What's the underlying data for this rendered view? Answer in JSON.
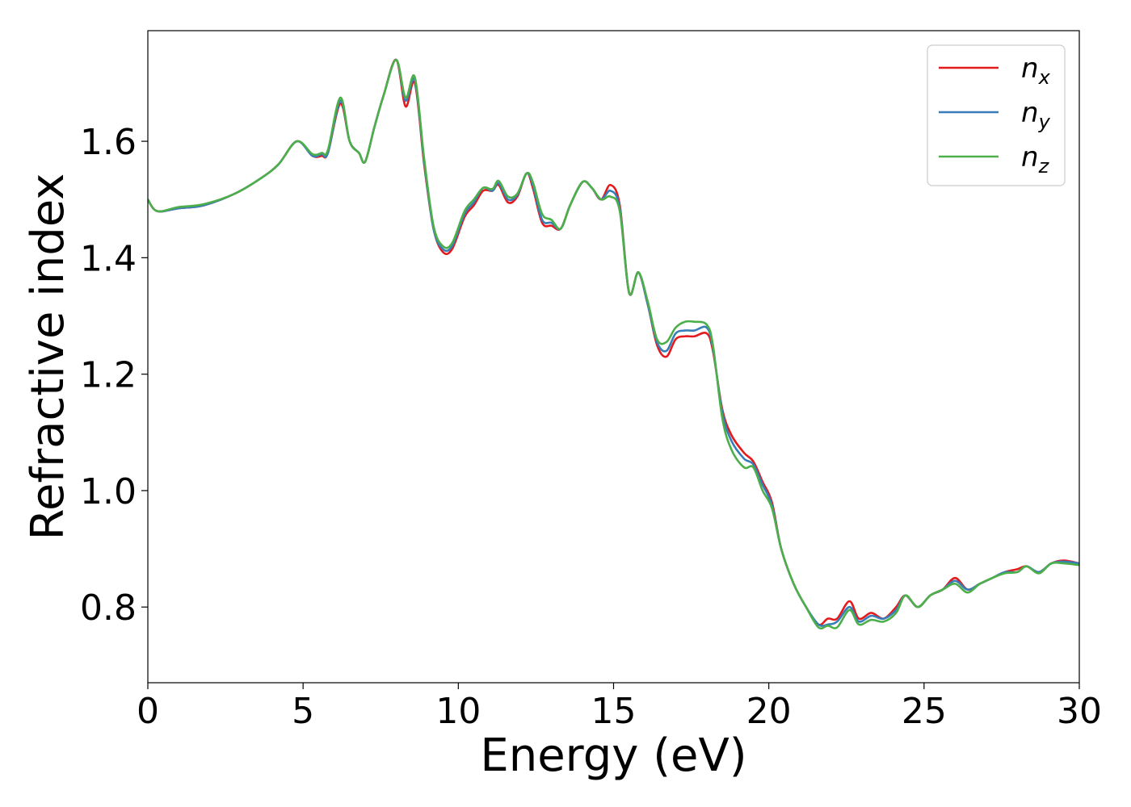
{
  "chart_data": {
    "type": "line",
    "title": "",
    "xlabel": "Energy (eV)",
    "ylabel": "Refractive index",
    "xlim": [
      0,
      30
    ],
    "ylim": [
      0.67,
      1.79
    ],
    "xticks": [
      0,
      5,
      10,
      15,
      20,
      25,
      30
    ],
    "xtick_labels": [
      "0",
      "5",
      "10",
      "15",
      "20",
      "25",
      "30"
    ],
    "yticks": [
      0.8,
      1.0,
      1.2,
      1.4,
      1.6
    ],
    "ytick_labels": [
      "0.8",
      "1.0",
      "1.2",
      "1.4",
      "1.6"
    ],
    "grid": false,
    "legend_position": "top-right",
    "x": [
      0,
      0.3,
      1,
      1.8,
      2.8,
      3.6,
      4.2,
      4.8,
      5.3,
      5.6,
      5.8,
      6.2,
      6.5,
      6.8,
      7.0,
      7.3,
      7.6,
      8.0,
      8.3,
      8.6,
      8.9,
      9.2,
      9.5,
      9.8,
      10.2,
      10.5,
      10.8,
      11.1,
      11.3,
      11.6,
      11.9,
      12.2,
      12.4,
      12.7,
      13.0,
      13.3,
      13.6,
      14.0,
      14.3,
      14.6,
      14.9,
      15.2,
      15.5,
      15.8,
      16.1,
      16.4,
      16.7,
      17.0,
      17.3,
      17.6,
      18.0,
      18.2,
      18.5,
      18.8,
      19.2,
      19.5,
      19.8,
      20.1,
      20.4,
      20.8,
      21.2,
      21.6,
      21.9,
      22.2,
      22.6,
      22.9,
      23.3,
      23.7,
      24.1,
      24.4,
      24.8,
      25.2,
      25.6,
      26.0,
      26.4,
      26.8,
      27.2,
      27.6,
      28.0,
      28.3,
      28.7,
      29.1,
      29.5,
      30.0
    ],
    "series": [
      {
        "name": "n_x",
        "legend_main": "n",
        "legend_sub": "x",
        "color": "#e41a1c",
        "values": [
          1.5,
          1.48,
          1.485,
          1.49,
          1.51,
          1.535,
          1.56,
          1.6,
          1.575,
          1.575,
          1.58,
          1.665,
          1.6,
          1.58,
          1.565,
          1.625,
          1.68,
          1.74,
          1.66,
          1.7,
          1.56,
          1.45,
          1.41,
          1.415,
          1.47,
          1.49,
          1.515,
          1.515,
          1.525,
          1.495,
          1.505,
          1.545,
          1.52,
          1.46,
          1.455,
          1.45,
          1.49,
          1.53,
          1.52,
          1.5,
          1.525,
          1.49,
          1.34,
          1.375,
          1.32,
          1.25,
          1.23,
          1.26,
          1.265,
          1.265,
          1.27,
          1.24,
          1.14,
          1.095,
          1.065,
          1.05,
          1.015,
          0.98,
          0.9,
          0.84,
          0.8,
          0.77,
          0.78,
          0.78,
          0.81,
          0.78,
          0.79,
          0.78,
          0.8,
          0.82,
          0.8,
          0.82,
          0.83,
          0.85,
          0.83,
          0.84,
          0.85,
          0.86,
          0.865,
          0.87,
          0.86,
          0.875,
          0.88,
          0.875
        ]
      },
      {
        "name": "n_y",
        "legend_main": "n",
        "legend_sub": "y",
        "color": "#377eb8",
        "values": [
          1.5,
          1.48,
          1.485,
          1.49,
          1.51,
          1.535,
          1.56,
          1.6,
          1.575,
          1.578,
          1.58,
          1.67,
          1.6,
          1.58,
          1.565,
          1.625,
          1.68,
          1.74,
          1.67,
          1.705,
          1.565,
          1.45,
          1.415,
          1.42,
          1.475,
          1.495,
          1.52,
          1.515,
          1.528,
          1.5,
          1.508,
          1.545,
          1.525,
          1.465,
          1.46,
          1.45,
          1.49,
          1.53,
          1.52,
          1.5,
          1.515,
          1.485,
          1.34,
          1.375,
          1.32,
          1.255,
          1.24,
          1.27,
          1.275,
          1.275,
          1.28,
          1.245,
          1.135,
          1.085,
          1.055,
          1.045,
          1.01,
          0.975,
          0.9,
          0.84,
          0.8,
          0.77,
          0.77,
          0.775,
          0.8,
          0.775,
          0.785,
          0.78,
          0.795,
          0.82,
          0.8,
          0.82,
          0.83,
          0.845,
          0.83,
          0.84,
          0.85,
          0.86,
          0.86,
          0.87,
          0.86,
          0.875,
          0.878,
          0.875
        ]
      },
      {
        "name": "n_z",
        "legend_main": "n",
        "legend_sub": "z",
        "color": "#4daf4a",
        "values": [
          1.5,
          1.48,
          1.487,
          1.492,
          1.51,
          1.535,
          1.56,
          1.6,
          1.578,
          1.58,
          1.585,
          1.675,
          1.6,
          1.58,
          1.565,
          1.625,
          1.68,
          1.74,
          1.675,
          1.71,
          1.57,
          1.455,
          1.42,
          1.425,
          1.48,
          1.5,
          1.52,
          1.518,
          1.532,
          1.505,
          1.51,
          1.545,
          1.53,
          1.475,
          1.465,
          1.45,
          1.49,
          1.53,
          1.52,
          1.5,
          1.505,
          1.48,
          1.34,
          1.375,
          1.325,
          1.26,
          1.255,
          1.28,
          1.29,
          1.29,
          1.285,
          1.25,
          1.125,
          1.07,
          1.04,
          1.04,
          1.0,
          0.97,
          0.9,
          0.84,
          0.8,
          0.765,
          0.768,
          0.765,
          0.795,
          0.77,
          0.778,
          0.775,
          0.79,
          0.82,
          0.8,
          0.82,
          0.83,
          0.84,
          0.825,
          0.84,
          0.85,
          0.858,
          0.86,
          0.87,
          0.858,
          0.875,
          0.875,
          0.872
        ]
      }
    ]
  }
}
